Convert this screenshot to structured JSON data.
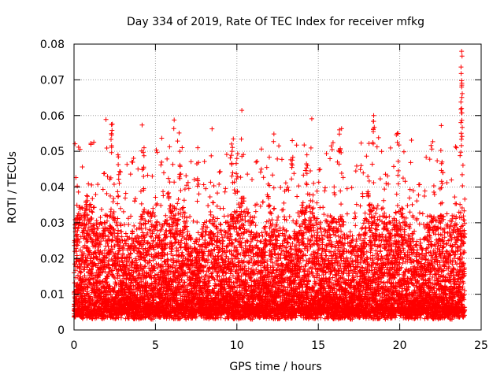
{
  "chart_data": {
    "type": "scatter",
    "title": "Day 334 of 2019, Rate Of TEC Index for receiver mfkg",
    "xlabel": "GPS time / hours",
    "ylabel": "ROTI / TECUs",
    "xlim": [
      0,
      25
    ],
    "ylim": [
      0,
      0.08
    ],
    "xticks": [
      "0",
      "5",
      "10",
      "15",
      "20",
      "25"
    ],
    "yticks": [
      "0",
      "0.01",
      "0.02",
      "0.03",
      "0.04",
      "0.05",
      "0.06",
      "0.07",
      "0.08"
    ],
    "grid": true,
    "marker": "+",
    "color": "#ff0000",
    "series": [
      {
        "name": "ROTI",
        "description": "Dense scatter of ROTI samples between 0 and 24 h, mostly 0.005-0.03 TECUs with spikes",
        "samples_per_hour": 420,
        "baseline_range": [
          0.003,
          0.022
        ],
        "notable_peaks": [
          {
            "x": 2.3,
            "y": 0.0575
          },
          {
            "x": 2.7,
            "y": 0.049
          },
          {
            "x": 4.3,
            "y": 0.051
          },
          {
            "x": 6.5,
            "y": 0.05
          },
          {
            "x": 7.6,
            "y": 0.051
          },
          {
            "x": 9.7,
            "y": 0.05
          },
          {
            "x": 10.0,
            "y": 0.048
          },
          {
            "x": 13.4,
            "y": 0.053
          },
          {
            "x": 14.3,
            "y": 0.049
          },
          {
            "x": 16.3,
            "y": 0.056
          },
          {
            "x": 18.4,
            "y": 0.06
          },
          {
            "x": 19.9,
            "y": 0.055
          },
          {
            "x": 22.6,
            "y": 0.047
          },
          {
            "x": 23.8,
            "y": 0.078
          },
          {
            "x": 23.8,
            "y": 0.068
          },
          {
            "x": 23.8,
            "y": 0.062
          }
        ]
      }
    ]
  }
}
